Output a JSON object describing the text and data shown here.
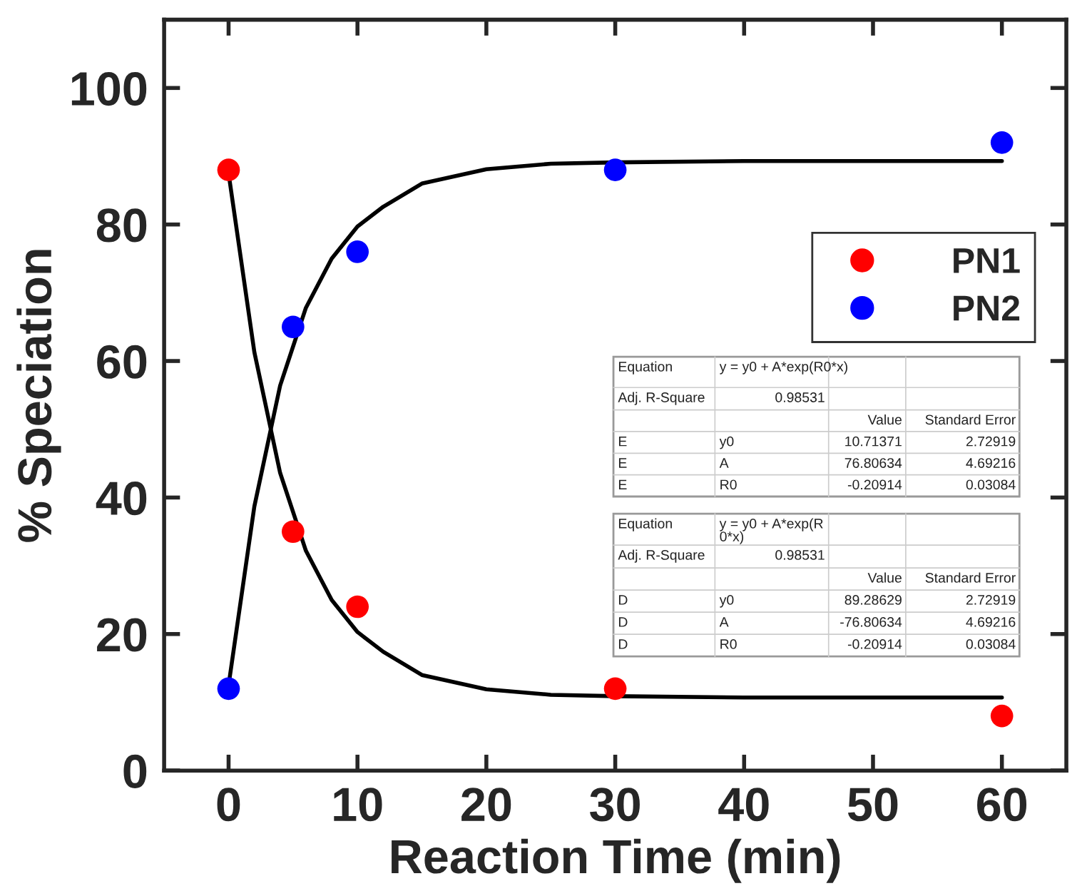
{
  "chart_data": {
    "type": "scatter",
    "xlabel": "Reaction Time (min)",
    "ylabel": "% Speciation",
    "series": [
      {
        "name": "PN1",
        "color": "#ff0000",
        "x": [
          0,
          5,
          10,
          30,
          60
        ],
        "values": [
          88,
          35,
          24,
          12,
          8
        ]
      },
      {
        "name": "PN2",
        "color": "#0000ff",
        "x": [
          0,
          5,
          10,
          30,
          60
        ],
        "values": [
          12,
          65,
          76,
          88,
          92
        ]
      },
      {
        "type": "line",
        "marker": "none",
        "color": "#000000",
        "x": [
          0,
          2,
          4,
          6,
          8,
          10,
          12,
          15,
          20,
          25,
          30,
          40,
          60
        ],
        "values": [
          87.5,
          61.3,
          43.6,
          32.2,
          25.0,
          20.3,
          17.4,
          14.0,
          11.9,
          11.1,
          10.9,
          10.7,
          10.7
        ]
      },
      {
        "type": "line",
        "marker": "none",
        "color": "#000000",
        "x": [
          0,
          2,
          4,
          6,
          8,
          10,
          12,
          15,
          20,
          25,
          30,
          40,
          60
        ],
        "values": [
          12.5,
          38.7,
          56.4,
          67.8,
          75.0,
          79.7,
          82.6,
          86.0,
          88.1,
          88.9,
          89.1,
          89.3,
          89.3
        ]
      }
    ],
    "xlim": [
      -5,
      65
    ],
    "ylim": [
      0,
      110
    ],
    "xticks": [
      0,
      10,
      20,
      30,
      40,
      50,
      60
    ],
    "yticks": [
      0,
      20,
      40,
      60,
      80,
      100
    ],
    "grid": false,
    "legend": "right",
    "marker": "circle",
    "annotations": [
      "Equation",
      "y = y0 + A*exp(R0*x)",
      "Adj. R-Square",
      "0.98531",
      "Value",
      "Standard Error",
      "E",
      "y0",
      "10.71371",
      "2.72919",
      "E",
      "A",
      "76.80634",
      "4.69216",
      "E",
      "R0",
      "-0.20914",
      "0.03084",
      "Equation",
      "y = y0 + A*exp(R\n0*x)",
      "Adj. R-Square",
      "0.98531",
      "Value",
      "Standard Error",
      "D",
      "y0",
      "89.28629",
      "2.72919",
      "D",
      "A",
      "-76.80634",
      "4.69216",
      "D",
      "R0",
      "-0.20914",
      "0.03084"
    ]
  }
}
